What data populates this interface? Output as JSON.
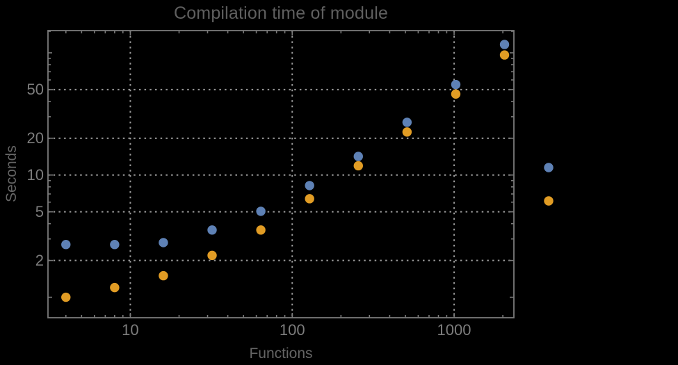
{
  "chart_data": {
    "type": "scatter",
    "title": "Compilation time of module",
    "xlabel": "Functions",
    "ylabel": "Seconds",
    "x_scale": "log",
    "y_scale": "log",
    "xlim": [
      3.1,
      2340
    ],
    "ylim": [
      0.68,
      152
    ],
    "x": [
      4,
      8,
      16,
      32,
      64,
      128,
      256,
      512,
      1024,
      2048
    ],
    "series": [
      {
        "name": "blue-series",
        "color": "#5e81b5",
        "values": [
          2.7,
          2.7,
          2.8,
          3.55,
          5.05,
          8.2,
          14.2,
          27,
          55,
          117
        ]
      },
      {
        "name": "orange-series",
        "color": "#e19c24",
        "values": [
          1.0,
          1.2,
          1.5,
          2.2,
          3.55,
          6.4,
          11.9,
          22.5,
          46,
          96
        ]
      }
    ],
    "x_ticks": {
      "labeled": [
        10,
        100,
        1000
      ],
      "labels": [
        "10",
        "100",
        "1000"
      ],
      "minor": [
        4,
        5,
        6,
        7,
        8,
        9,
        20,
        30,
        40,
        50,
        60,
        70,
        80,
        90,
        200,
        300,
        400,
        500,
        600,
        700,
        800,
        900,
        2000
      ]
    },
    "y_ticks": {
      "labeled": [
        2,
        5,
        10,
        20,
        50
      ],
      "labels": [
        "2",
        "5",
        "10",
        "20",
        "50"
      ],
      "major_unlabeled": [
        1,
        100
      ],
      "minor": [
        3,
        4,
        6,
        7,
        8,
        9,
        30,
        40,
        60,
        70,
        80,
        90,
        150
      ]
    },
    "gridlines": {
      "x": [
        10,
        100,
        1000
      ],
      "y": [
        2,
        5,
        10,
        20,
        50
      ],
      "style": "dotted"
    },
    "legend": {
      "markers_only": true,
      "entries": [
        {
          "series": "blue-series",
          "color": "#5e81b5"
        },
        {
          "series": "orange-series",
          "color": "#e19c24"
        }
      ]
    }
  },
  "colors": {
    "background": "#000000",
    "frame": "#7a7a7a",
    "grid": "#9a9a9a",
    "title_text": "#5f5f5f",
    "axis_label_text": "#656565",
    "tick_label_text": "#7d7d7d",
    "series_blue": "#5e81b5",
    "series_orange": "#e19c24"
  }
}
